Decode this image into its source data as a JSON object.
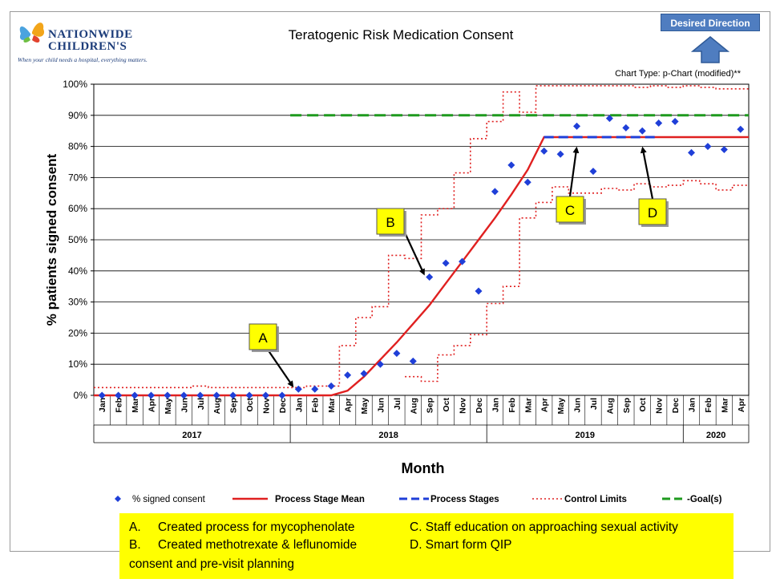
{
  "header": {
    "logo_name": "NATIONWIDE CHILDREN'S",
    "logo_tagline": "When your child needs a hospital, everything matters.",
    "direction_label": "Desired Direction",
    "chart_type_label": "Chart Type: p-Chart (modified)**"
  },
  "chart_data": {
    "type": "scatter",
    "title": "Teratogenic Risk Medication Consent",
    "xlabel": "Month",
    "ylabel": "% patients signed consent",
    "ylim": [
      0,
      100
    ],
    "yticks": [
      "0%",
      "10%",
      "20%",
      "30%",
      "40%",
      "50%",
      "60%",
      "70%",
      "80%",
      "90%",
      "100%"
    ],
    "months": [
      "Jan",
      "Feb",
      "Mar",
      "Apr",
      "May",
      "Jun",
      "Jul",
      "Aug",
      "Sep",
      "Oct",
      "Nov",
      "Dec",
      "Jan",
      "Feb",
      "Mar",
      "Apr",
      "May",
      "Jun",
      "Jul",
      "Aug",
      "Sep",
      "Oct",
      "Nov",
      "Dec",
      "Jan",
      "Feb",
      "Mar",
      "Apr",
      "May",
      "Jun",
      "Jul",
      "Aug",
      "Sep",
      "Oct",
      "Nov",
      "Dec",
      "Jan",
      "Feb",
      "Mar",
      "Apr"
    ],
    "years": [
      {
        "label": "2017",
        "start": 0,
        "count": 12
      },
      {
        "label": "2018",
        "start": 12,
        "count": 12
      },
      {
        "label": "2019",
        "start": 24,
        "count": 12
      },
      {
        "label": "2020",
        "start": 36,
        "count": 4
      }
    ],
    "series": [
      {
        "name": "% signed consent",
        "values": [
          0,
          0,
          0,
          0,
          0,
          0,
          0,
          0,
          0,
          0,
          0,
          0,
          2,
          2,
          3,
          6.5,
          7,
          10,
          13.5,
          11,
          38,
          42.5,
          43,
          33.5,
          65.5,
          74,
          68.5,
          78.5,
          77.5,
          86.5,
          72,
          89,
          86,
          85,
          87.5,
          88,
          78,
          80,
          79,
          85.5
        ]
      },
      {
        "name": "Process Stage Mean",
        "values": [
          0,
          0,
          0,
          0,
          0,
          0,
          0,
          0,
          0,
          0,
          0,
          0,
          0,
          0,
          0,
          1.5,
          6,
          11.5,
          17,
          23,
          29,
          36,
          43,
          50,
          57,
          64.5,
          72.5,
          83,
          83,
          83,
          83,
          83,
          83,
          83,
          83,
          83,
          83,
          83,
          83,
          83
        ]
      },
      {
        "name": "Process Stages",
        "values": [
          null,
          null,
          null,
          null,
          null,
          null,
          null,
          null,
          null,
          null,
          null,
          null,
          null,
          null,
          null,
          null,
          null,
          null,
          null,
          null,
          null,
          null,
          null,
          null,
          null,
          null,
          null,
          83,
          83,
          83,
          83,
          83,
          83,
          83,
          83,
          null,
          null,
          null,
          null,
          null
        ]
      },
      {
        "name": "Control Limits Upper",
        "values": [
          2.5,
          2.5,
          2.5,
          2.5,
          2.5,
          2.5,
          3,
          2.5,
          2.5,
          2.5,
          2.5,
          2.5,
          2.5,
          3,
          3,
          16,
          25,
          28.5,
          45,
          44,
          58,
          60,
          71.5,
          82.5,
          88,
          97.5,
          91,
          99.5,
          99.5,
          99.5,
          99.5,
          99.5,
          99.5,
          99,
          99.5,
          99,
          99.5,
          99,
          98.5,
          98.5
        ]
      },
      {
        "name": "Control Limits Lower",
        "values": [
          null,
          null,
          null,
          null,
          null,
          null,
          null,
          null,
          null,
          null,
          null,
          null,
          null,
          null,
          null,
          null,
          null,
          null,
          null,
          6,
          4.5,
          13,
          16,
          19.5,
          29.5,
          35,
          57,
          62,
          67,
          65,
          65,
          66.5,
          66,
          68,
          67,
          67.5,
          69,
          68,
          66,
          67.5
        ]
      },
      {
        "name": "Goal(s)",
        "values": [
          null,
          null,
          null,
          null,
          null,
          null,
          null,
          null,
          null,
          null,
          null,
          null,
          90,
          90,
          90,
          90,
          90,
          90,
          90,
          90,
          90,
          90,
          90,
          90,
          90,
          90,
          90,
          90,
          90,
          90,
          90,
          90,
          90,
          90,
          90,
          90,
          90,
          90,
          90,
          90
        ]
      }
    ],
    "legend": [
      "% signed consent",
      "Process Stage Mean",
      "Process Stages",
      "Control Limits",
      "Goal(s)"
    ],
    "annotations": [
      {
        "label": "A",
        "target_month": 12,
        "target_value": 2
      },
      {
        "label": "B",
        "target_month": 20,
        "target_value": 38
      },
      {
        "label": "C",
        "target_month": 29,
        "target_value": 80
      },
      {
        "label": "D",
        "target_month": 33,
        "target_value": 80
      }
    ],
    "colors": {
      "points": "#1f3fd8",
      "mean": "#e02020",
      "stages": "#1f3fd8",
      "limits": "#e02020",
      "goal": "#1e9a1e",
      "plot_bg": "#ffffff",
      "grid": "#000000"
    }
  },
  "notes": {
    "items": [
      {
        "letter": "A.",
        "text": "Created process for mycophenolate"
      },
      {
        "letter": "B.",
        "text": "Created methotrexate & leflunomide"
      },
      {
        "letter": "",
        "text": "consent and pre-visit planning"
      },
      {
        "letter": "",
        "text": "C. Staff education on approaching sexual activity"
      },
      {
        "letter": "",
        "text": "D. Smart form QIP"
      }
    ]
  }
}
